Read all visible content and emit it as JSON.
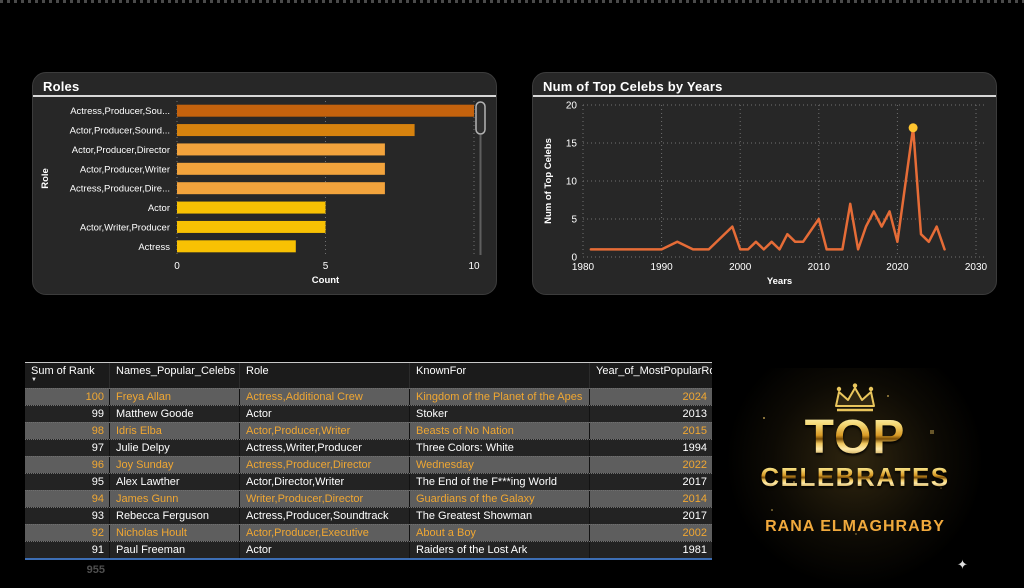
{
  "icons": {
    "sort_descending": "▼",
    "sparkle": "✦"
  },
  "chart_data": [
    {
      "type": "bar",
      "orientation": "horizontal",
      "title": "Roles",
      "categories": [
        "Actress,Producer,Sou...",
        "Actor,Producer,Sound...",
        "Actor,Producer,Director",
        "Actor,Producer,Writer",
        "Actress,Producer,Dire...",
        "Actor",
        "Actor,Writer,Producer",
        "Actress"
      ],
      "values": [
        10,
        8,
        7,
        7,
        7,
        5,
        5,
        4
      ],
      "bar_colors": [
        "#c4620d",
        "#d6820e",
        "#f2a33c",
        "#f2a33c",
        "#f2a33c",
        "#f8c103",
        "#f8c103",
        "#f8c103"
      ],
      "xlabel": "Count",
      "ylabel": "Role",
      "xlim": [
        0,
        10
      ],
      "xticks": [
        0,
        5,
        10
      ],
      "grid": "dashed-vertical",
      "has_scrollbar": true
    },
    {
      "type": "line",
      "title": "Num of Top Celebs by Years",
      "xlabel": "Years",
      "ylabel": "Num of Top Celebs",
      "xlim": [
        1980,
        2030
      ],
      "ylim": [
        0,
        20
      ],
      "xticks": [
        1980,
        1990,
        2000,
        2010,
        2020,
        2030
      ],
      "yticks": [
        0,
        5,
        10,
        15,
        20
      ],
      "line_color": "#e66c37",
      "grid": "dotted",
      "marker": {
        "x": 2022,
        "y": 17,
        "color": "#ffc52f"
      },
      "points": [
        [
          1981,
          1
        ],
        [
          1990,
          1
        ],
        [
          1992,
          2
        ],
        [
          1994,
          1
        ],
        [
          1996,
          1
        ],
        [
          1999,
          4
        ],
        [
          2000,
          1
        ],
        [
          2001,
          1
        ],
        [
          2002,
          2
        ],
        [
          2003,
          1
        ],
        [
          2004,
          2
        ],
        [
          2005,
          1
        ],
        [
          2006,
          3
        ],
        [
          2007,
          2
        ],
        [
          2008,
          2
        ],
        [
          2010,
          5
        ],
        [
          2011,
          1
        ],
        [
          2013,
          1
        ],
        [
          2014,
          7
        ],
        [
          2015,
          1
        ],
        [
          2016,
          4
        ],
        [
          2017,
          6
        ],
        [
          2018,
          4
        ],
        [
          2019,
          6
        ],
        [
          2020,
          2
        ],
        [
          2022,
          17
        ],
        [
          2023,
          3
        ],
        [
          2024,
          2
        ],
        [
          2025,
          4
        ],
        [
          2026,
          1
        ]
      ]
    },
    {
      "type": "table",
      "columns": [
        {
          "label": "Sum of Rank",
          "align": "right",
          "sorted": true
        },
        {
          "label": "Names_Popular_Celebs",
          "align": "left",
          "sorted": false
        },
        {
          "label": "Role",
          "align": "left",
          "sorted": false
        },
        {
          "label": "KnownFor",
          "align": "left",
          "sorted": false
        },
        {
          "label": "Year_of_MostPopularRole",
          "align": "right",
          "sorted": false
        }
      ],
      "rows": [
        {
          "cells": [
            "100",
            "Freya Allan",
            "Actress,Additional Crew",
            "Kingdom of the Planet of the Apes",
            "2024"
          ],
          "highlight": true
        },
        {
          "cells": [
            "99",
            "Matthew Goode",
            "Actor",
            "Stoker",
            "2013"
          ],
          "highlight": false
        },
        {
          "cells": [
            "98",
            "Idris Elba",
            "Actor,Producer,Writer",
            "Beasts of No Nation",
            "2015"
          ],
          "highlight": true
        },
        {
          "cells": [
            "97",
            "Julie Delpy",
            "Actress,Writer,Producer",
            "Three Colors: White",
            "1994"
          ],
          "highlight": false
        },
        {
          "cells": [
            "96",
            "Joy Sunday",
            "Actress,Producer,Director",
            "Wednesday",
            "2022"
          ],
          "highlight": true
        },
        {
          "cells": [
            "95",
            "Alex Lawther",
            "Actor,Director,Writer",
            "The End of the F***ing World",
            "2017"
          ],
          "highlight": false
        },
        {
          "cells": [
            "94",
            "James Gunn",
            "Writer,Producer,Director",
            "Guardians of the Galaxy",
            "2014"
          ],
          "highlight": true
        },
        {
          "cells": [
            "93",
            "Rebecca Ferguson",
            "Actress,Producer,Soundtrack",
            "The Greatest Showman",
            "2017"
          ],
          "highlight": false
        },
        {
          "cells": [
            "92",
            "Nicholas Hoult",
            "Actor,Producer,Executive",
            "About a Boy",
            "2002"
          ],
          "highlight": true
        },
        {
          "cells": [
            "91",
            "Paul Freeman",
            "Actor",
            "Raiders of the Lost Ark",
            "1981"
          ],
          "highlight": false
        }
      ],
      "total": "955",
      "colors": {
        "highlight_bg": "#5e5e5e",
        "highlight_text": "#f0a732",
        "row_bg": "#232323",
        "row_text": "#ffffff",
        "bottom_border": "#3d6eb4"
      }
    }
  ],
  "logo": {
    "brand_top": "TOP",
    "brand_bottom": "CELEBRATES",
    "author": "RANA ELMAGHRABY"
  }
}
